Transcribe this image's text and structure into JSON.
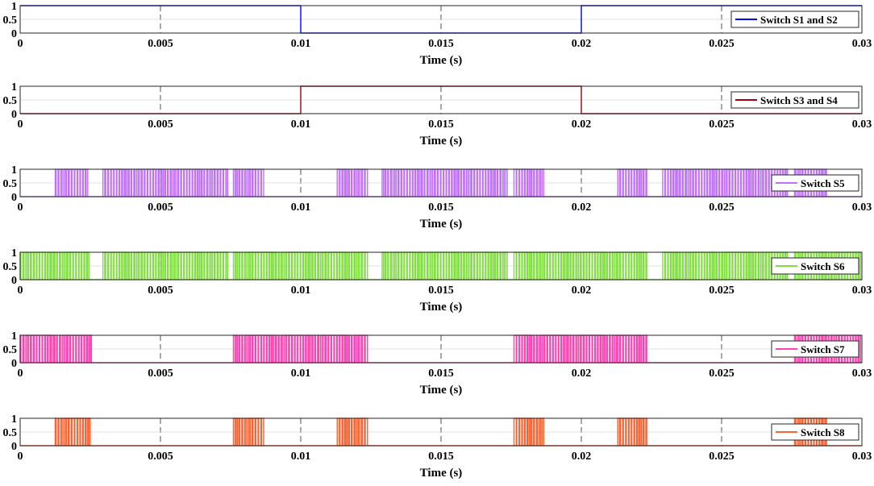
{
  "chart_data": [
    {
      "type": "line",
      "signal": "square",
      "legend": "Switch S1 and S2",
      "color": "#0000ff",
      "xlabel": "Time (s)",
      "xlim": [
        0,
        0.03
      ],
      "ylim": [
        0,
        1
      ],
      "xticks": [
        "0",
        "0.005",
        "0.01",
        "0.015",
        "0.02",
        "0.025",
        "0.03"
      ],
      "yticks": [
        "0",
        "0.5",
        "1"
      ],
      "grid": true,
      "legend_position": "right",
      "series": [
        {
          "name": "Switch S1 and S2",
          "x": [
            0,
            0.01,
            0.01,
            0.02,
            0.02,
            0.03
          ],
          "y": [
            1,
            1,
            0,
            0,
            1,
            1
          ]
        }
      ]
    },
    {
      "type": "line",
      "signal": "square",
      "legend": "Switch S3 and S4",
      "color": "#a00010",
      "xlabel": "Time (s)",
      "xlim": [
        0,
        0.03
      ],
      "ylim": [
        0,
        1
      ],
      "xticks": [
        "0",
        "0.005",
        "0.01",
        "0.015",
        "0.02",
        "0.025",
        "0.03"
      ],
      "yticks": [
        "0",
        "0.5",
        "1"
      ],
      "grid": true,
      "legend_position": "right",
      "series": [
        {
          "name": "Switch S3 and S4",
          "x": [
            0,
            0.01,
            0.01,
            0.02,
            0.02,
            0.03
          ],
          "y": [
            0,
            0,
            1,
            1,
            0,
            0
          ]
        }
      ]
    },
    {
      "type": "line",
      "signal": "pwm",
      "legend": "Switch S5",
      "color": "#c070ff",
      "xlabel": "Time (s)",
      "xlim": [
        0,
        0.03
      ],
      "ylim": [
        0,
        1
      ],
      "xticks": [
        "0",
        "0.005",
        "0.01",
        "0.015",
        "0.02",
        "0.025",
        "0.03"
      ],
      "yticks": [
        "0",
        "0.5",
        "1"
      ],
      "grid": true,
      "legend_position": "right",
      "switching_intervals": [
        [
          0.00125,
          0.00245
        ],
        [
          0.00295,
          0.0074
        ],
        [
          0.0076,
          0.0087
        ],
        [
          0.0113,
          0.0124
        ],
        [
          0.0129,
          0.0174
        ],
        [
          0.0176,
          0.0187
        ],
        [
          0.0213,
          0.0224
        ],
        [
          0.0229,
          0.0274
        ],
        [
          0.0276,
          0.0288
        ]
      ]
    },
    {
      "type": "line",
      "signal": "pwm",
      "legend": "Switch S6",
      "color": "#80e040",
      "xlabel": "Time (s)",
      "xlim": [
        0,
        0.03
      ],
      "ylim": [
        0,
        1
      ],
      "xticks": [
        "0",
        "0.005",
        "0.01",
        "0.015",
        "0.02",
        "0.025",
        "0.03"
      ],
      "yticks": [
        "0",
        "0.5",
        "1"
      ],
      "grid": true,
      "legend_position": "right",
      "switching_intervals": [
        [
          0,
          0.00245
        ],
        [
          0.00295,
          0.0074
        ],
        [
          0.0076,
          0.0124
        ],
        [
          0.0129,
          0.0174
        ],
        [
          0.0176,
          0.0224
        ],
        [
          0.0229,
          0.0274
        ],
        [
          0.0276,
          0.03
        ]
      ]
    },
    {
      "type": "line",
      "signal": "pwm",
      "legend": "Switch S7",
      "color": "#ff40b0",
      "xlabel": "Time (s)",
      "xlim": [
        0,
        0.03
      ],
      "ylim": [
        0,
        1
      ],
      "xticks": [
        "0",
        "0.005",
        "0.01",
        "0.015",
        "0.02",
        "0.025",
        "0.03"
      ],
      "yticks": [
        "0",
        "0.5",
        "1"
      ],
      "grid": true,
      "legend_position": "right",
      "switching_intervals": [
        [
          0,
          0.00255
        ],
        [
          0.0076,
          0.0124
        ],
        [
          0.0176,
          0.0224
        ],
        [
          0.0276,
          0.03
        ]
      ]
    },
    {
      "type": "line",
      "signal": "pwm",
      "legend": "Switch S8",
      "color": "#ff6030",
      "xlabel": "Time (s)",
      "xlim": [
        0,
        0.03
      ],
      "ylim": [
        0,
        1
      ],
      "xticks": [
        "0",
        "0.005",
        "0.01",
        "0.015",
        "0.02",
        "0.025",
        "0.03"
      ],
      "yticks": [
        "0",
        "0.5",
        "1"
      ],
      "grid": true,
      "legend_position": "right",
      "switching_intervals": [
        [
          0.00125,
          0.00255
        ],
        [
          0.0076,
          0.0087
        ],
        [
          0.0113,
          0.0124
        ],
        [
          0.0176,
          0.0187
        ],
        [
          0.0213,
          0.0224
        ],
        [
          0.0276,
          0.0288
        ]
      ]
    }
  ]
}
